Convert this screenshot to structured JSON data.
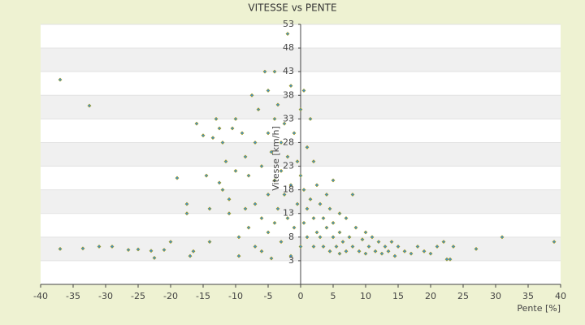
{
  "chart_data": {
    "type": "scatter",
    "title": "VITESSE vs PENTE",
    "xlabel": "Pente [%]",
    "ylabel": "Vitesse [km/h]",
    "xlim": [
      -40,
      40
    ],
    "xticks": [
      -40,
      -35,
      -30,
      -25,
      -20,
      -15,
      -10,
      -5,
      0,
      5,
      10,
      15,
      20,
      25,
      30,
      35,
      40
    ],
    "ylim": [
      -2,
      53
    ],
    "yticks": [
      3,
      8,
      13,
      18,
      23,
      28,
      33,
      38,
      43,
      48,
      53
    ],
    "grid": true,
    "color": "#3d8fd1",
    "edge_color": "#a89a10",
    "x": [
      -37,
      -32.5,
      -37,
      -33.5,
      -31,
      -29,
      -26.5,
      -25,
      -23,
      -22.5,
      -21,
      -20,
      -19,
      -17.5,
      -17.5,
      -17,
      -16.5,
      -16,
      -15,
      -14.5,
      -14,
      -14,
      -13.5,
      -13,
      -12.5,
      -12,
      -12,
      -12.5,
      -11.5,
      -11,
      -11,
      -10.5,
      -10,
      -10,
      -9.5,
      -9.5,
      -9,
      -8.5,
      -8.5,
      -8,
      -8,
      -7.5,
      -7,
      -7,
      -7,
      -6.5,
      -6,
      -6,
      -6,
      -5.5,
      -5,
      -5,
      -5,
      -5,
      -4.5,
      -4.5,
      -4,
      -4,
      -4,
      -4,
      -3.5,
      -3.5,
      -3,
      -3,
      -3,
      -2.5,
      -2.5,
      -2,
      -2,
      -2,
      -1.5,
      -1.5,
      -1.5,
      -1,
      -1,
      -0.5,
      -0.5,
      0,
      0,
      0,
      0.5,
      0.5,
      0.5,
      1,
      1,
      1,
      1.5,
      1.5,
      2,
      2,
      2,
      2.5,
      2.5,
      3,
      3,
      3.5,
      3.5,
      4,
      4,
      4.5,
      4.5,
      5,
      5,
      5,
      5.5,
      6,
      6,
      6,
      6.5,
      7,
      7,
      7.5,
      8,
      8,
      8.5,
      9,
      9.5,
      10,
      10,
      10.5,
      11,
      11.5,
      12,
      12.5,
      13,
      13.5,
      14,
      14.5,
      15,
      16,
      17,
      18,
      19,
      20,
      21,
      22,
      22.5,
      23,
      23.5,
      27,
      31,
      39
    ],
    "values": [
      41.3,
      35.8,
      5.5,
      5.6,
      6,
      6,
      5.3,
      5.4,
      5.1,
      3.6,
      5.3,
      7,
      20.5,
      15,
      13,
      4,
      5,
      32,
      29.5,
      21,
      14,
      7,
      29,
      33,
      31,
      28,
      18,
      19.5,
      24,
      13,
      16,
      31,
      22,
      33,
      8,
      4,
      30,
      25,
      14,
      21,
      10,
      38,
      28,
      15,
      6,
      35,
      23,
      12,
      5,
      43,
      39,
      30,
      17,
      9,
      26,
      3.5,
      43,
      33,
      20,
      11,
      36,
      14,
      28,
      22,
      7,
      32,
      17,
      51,
      25,
      12,
      40,
      19,
      4,
      30,
      10,
      24,
      15,
      35,
      21,
      6,
      39,
      18,
      11,
      27,
      14,
      8,
      33,
      16,
      24,
      12,
      6,
      19,
      9,
      15,
      8,
      12,
      6,
      17,
      10,
      14,
      5,
      20,
      11,
      8,
      6,
      13,
      9,
      4.5,
      7,
      12,
      5,
      8,
      6,
      17,
      10,
      5,
      7.5,
      9,
      4.5,
      6,
      8,
      5,
      7,
      4.5,
      6,
      5,
      7,
      4,
      6,
      5,
      4.5,
      6,
      5,
      4.5,
      6,
      7,
      3.3,
      3.3,
      6,
      5.5,
      8,
      7
    ]
  }
}
